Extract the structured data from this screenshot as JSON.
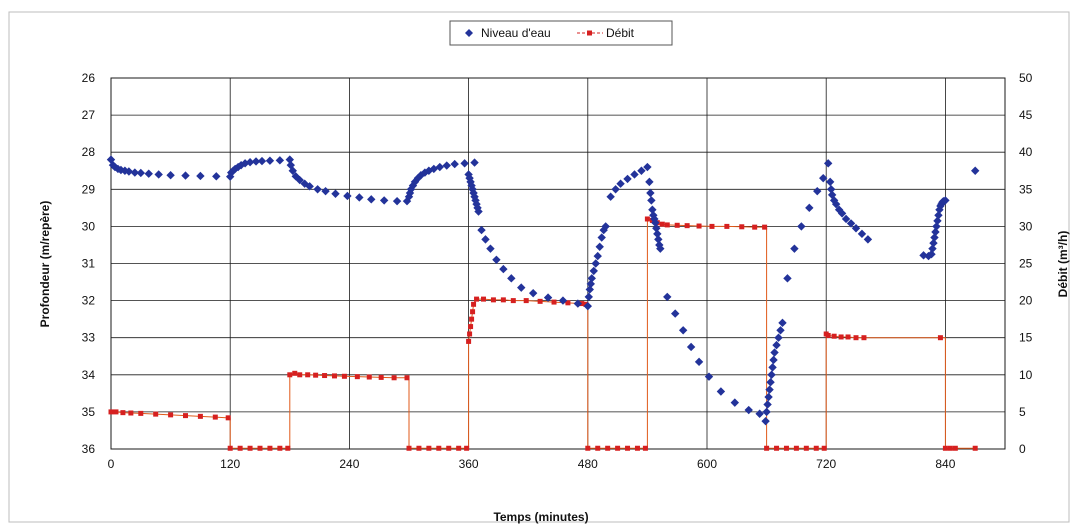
{
  "chart_data": {
    "type": "scatter",
    "title": "",
    "xlabel": "Temps (minutes)",
    "ylabel": "Profondeur (m/repère)",
    "y2label": "Débit (m³/h)",
    "xlim": [
      0,
      900
    ],
    "ylim": [
      36,
      26
    ],
    "y2lim": [
      0,
      50
    ],
    "x_ticks": [
      0,
      120,
      240,
      360,
      480,
      600,
      720,
      840
    ],
    "x_tick_labels": [
      "0",
      "120",
      "240",
      "360",
      "480",
      "600",
      "720",
      "840"
    ],
    "y_ticks": [
      26,
      27,
      28,
      29,
      30,
      31,
      32,
      33,
      34,
      35,
      36
    ],
    "y_tick_labels": [
      "26",
      "27",
      "28",
      "29",
      "30",
      "31",
      "32",
      "33",
      "34",
      "35",
      "36"
    ],
    "y2_ticks": [
      0,
      5,
      10,
      15,
      20,
      25,
      30,
      35,
      40,
      45,
      50
    ],
    "y2_tick_labels": [
      "0",
      "5",
      "10",
      "15",
      "20",
      "25",
      "30",
      "35",
      "40",
      "45",
      "50"
    ],
    "grid": true,
    "legend_position": "top-center",
    "colors": {
      "niveau": "#23339a",
      "debit": "#d62020",
      "flow_line": "#e05a1a",
      "grid": "#1a1a1a",
      "background": "#ffffff"
    },
    "series": [
      {
        "name": "Niveau d'eau",
        "axis": "left",
        "marker": "diamond",
        "points": [
          [
            0,
            28.2
          ],
          [
            2,
            28.35
          ],
          [
            4,
            28.4
          ],
          [
            7,
            28.45
          ],
          [
            10,
            28.48
          ],
          [
            14,
            28.5
          ],
          [
            18,
            28.52
          ],
          [
            24,
            28.55
          ],
          [
            30,
            28.56
          ],
          [
            38,
            28.58
          ],
          [
            48,
            28.6
          ],
          [
            60,
            28.62
          ],
          [
            75,
            28.63
          ],
          [
            90,
            28.64
          ],
          [
            106,
            28.65
          ],
          [
            120,
            28.66
          ],
          [
            121,
            28.55
          ],
          [
            123,
            28.5
          ],
          [
            125,
            28.45
          ],
          [
            128,
            28.4
          ],
          [
            131,
            28.35
          ],
          [
            135,
            28.3
          ],
          [
            140,
            28.27
          ],
          [
            146,
            28.25
          ],
          [
            152,
            28.24
          ],
          [
            160,
            28.23
          ],
          [
            170,
            28.22
          ],
          [
            180,
            28.2
          ],
          [
            181,
            28.35
          ],
          [
            183,
            28.5
          ],
          [
            186,
            28.65
          ],
          [
            190,
            28.75
          ],
          [
            195,
            28.85
          ],
          [
            200,
            28.92
          ],
          [
            208,
            29.0
          ],
          [
            216,
            29.05
          ],
          [
            226,
            29.12
          ],
          [
            238,
            29.18
          ],
          [
            250,
            29.22
          ],
          [
            262,
            29.27
          ],
          [
            275,
            29.3
          ],
          [
            288,
            29.32
          ],
          [
            298,
            29.32
          ],
          [
            300,
            29.2
          ],
          [
            301,
            29.1
          ],
          [
            302,
            29.0
          ],
          [
            304,
            28.9
          ],
          [
            306,
            28.8
          ],
          [
            309,
            28.7
          ],
          [
            312,
            28.62
          ],
          [
            316,
            28.55
          ],
          [
            320,
            28.5
          ],
          [
            325,
            28.45
          ],
          [
            331,
            28.4
          ],
          [
            338,
            28.36
          ],
          [
            346,
            28.32
          ],
          [
            356,
            28.3
          ],
          [
            366,
            28.28
          ],
          [
            360,
            28.6
          ],
          [
            361,
            28.7
          ],
          [
            362,
            28.8
          ],
          [
            363,
            28.9
          ],
          [
            364,
            29.0
          ],
          [
            365,
            29.1
          ],
          [
            366,
            29.2
          ],
          [
            367,
            29.3
          ],
          [
            368,
            29.4
          ],
          [
            369,
            29.5
          ],
          [
            370,
            29.6
          ],
          [
            373,
            30.1
          ],
          [
            377,
            30.35
          ],
          [
            382,
            30.6
          ],
          [
            388,
            30.9
          ],
          [
            395,
            31.15
          ],
          [
            403,
            31.4
          ],
          [
            413,
            31.65
          ],
          [
            425,
            31.8
          ],
          [
            440,
            31.92
          ],
          [
            455,
            32.0
          ],
          [
            470,
            32.08
          ],
          [
            480,
            32.15
          ],
          [
            481,
            31.9
          ],
          [
            482,
            31.7
          ],
          [
            483,
            31.55
          ],
          [
            484,
            31.4
          ],
          [
            486,
            31.2
          ],
          [
            488,
            31.0
          ],
          [
            490,
            30.8
          ],
          [
            492,
            30.55
          ],
          [
            494,
            30.3
          ],
          [
            496,
            30.1
          ],
          [
            498,
            30.0
          ],
          [
            503,
            29.2
          ],
          [
            508,
            29.0
          ],
          [
            513,
            28.85
          ],
          [
            520,
            28.72
          ],
          [
            527,
            28.6
          ],
          [
            534,
            28.5
          ],
          [
            540,
            28.4
          ],
          [
            542,
            28.8
          ],
          [
            543,
            29.1
          ],
          [
            544,
            29.3
          ],
          [
            545,
            29.55
          ],
          [
            546,
            29.7
          ],
          [
            547,
            29.8
          ],
          [
            548,
            29.9
          ],
          [
            549,
            30.05
          ],
          [
            550,
            30.2
          ],
          [
            551,
            30.35
          ],
          [
            552,
            30.5
          ],
          [
            553,
            30.6
          ],
          [
            560,
            31.9
          ],
          [
            568,
            32.35
          ],
          [
            576,
            32.8
          ],
          [
            584,
            33.25
          ],
          [
            592,
            33.65
          ],
          [
            602,
            34.05
          ],
          [
            614,
            34.45
          ],
          [
            628,
            34.75
          ],
          [
            642,
            34.95
          ],
          [
            653,
            35.05
          ],
          [
            659,
            35.25
          ],
          [
            660,
            35.0
          ],
          [
            661,
            34.8
          ],
          [
            662,
            34.6
          ],
          [
            663,
            34.4
          ],
          [
            664,
            34.2
          ],
          [
            665,
            34.0
          ],
          [
            666,
            33.8
          ],
          [
            667,
            33.6
          ],
          [
            668,
            33.4
          ],
          [
            670,
            33.2
          ],
          [
            672,
            33.0
          ],
          [
            674,
            32.8
          ],
          [
            676,
            32.6
          ],
          [
            681,
            31.4
          ],
          [
            688,
            30.6
          ],
          [
            695,
            30.0
          ],
          [
            703,
            29.5
          ],
          [
            711,
            29.05
          ],
          [
            717,
            28.7
          ],
          [
            722,
            28.3
          ],
          [
            724,
            28.8
          ],
          [
            725,
            29.0
          ],
          [
            726,
            29.15
          ],
          [
            728,
            29.3
          ],
          [
            730,
            29.4
          ],
          [
            733,
            29.55
          ],
          [
            736,
            29.65
          ],
          [
            740,
            29.8
          ],
          [
            745,
            29.92
          ],
          [
            750,
            30.05
          ],
          [
            756,
            30.2
          ],
          [
            762,
            30.35
          ],
          [
            818,
            30.78
          ],
          [
            823,
            30.8
          ],
          [
            826,
            30.75
          ],
          [
            827,
            30.6
          ],
          [
            828,
            30.45
          ],
          [
            829,
            30.3
          ],
          [
            830,
            30.15
          ],
          [
            831,
            30.0
          ],
          [
            832,
            29.85
          ],
          [
            833,
            29.7
          ],
          [
            834,
            29.55
          ],
          [
            835,
            29.45
          ],
          [
            836,
            29.4
          ],
          [
            837,
            29.35
          ],
          [
            838,
            29.32
          ],
          [
            840,
            29.3
          ],
          [
            870,
            28.5
          ]
        ]
      },
      {
        "name": "Débit",
        "axis": "right",
        "marker": "square",
        "segments": [
          [
            [
              0,
              5.0
            ],
            [
              5,
              5.0
            ],
            [
              12,
              4.9
            ],
            [
              20,
              4.85
            ],
            [
              30,
              4.8
            ],
            [
              45,
              4.7
            ],
            [
              60,
              4.6
            ],
            [
              75,
              4.5
            ],
            [
              90,
              4.4
            ],
            [
              105,
              4.3
            ],
            [
              118,
              4.2
            ]
          ],
          [
            [
              120,
              0.1
            ],
            [
              130,
              0.1
            ],
            [
              140,
              0.1
            ],
            [
              150,
              0.1
            ],
            [
              160,
              0.1
            ],
            [
              170,
              0.1
            ],
            [
              178,
              0.1
            ]
          ],
          [
            [
              180,
              10.0
            ],
            [
              185,
              10.2
            ],
            [
              190,
              10.0
            ],
            [
              198,
              10.0
            ],
            [
              206,
              9.95
            ],
            [
              215,
              9.9
            ],
            [
              225,
              9.85
            ],
            [
              235,
              9.8
            ],
            [
              248,
              9.75
            ],
            [
              260,
              9.7
            ],
            [
              272,
              9.65
            ],
            [
              285,
              9.6
            ],
            [
              298,
              9.6
            ]
          ],
          [
            [
              300,
              0.1
            ],
            [
              310,
              0.1
            ],
            [
              320,
              0.1
            ],
            [
              330,
              0.1
            ],
            [
              340,
              0.1
            ],
            [
              350,
              0.1
            ],
            [
              358,
              0.1
            ]
          ],
          [
            [
              360,
              14.5
            ],
            [
              361,
              15.5
            ],
            [
              362,
              16.5
            ],
            [
              363,
              17.5
            ],
            [
              364,
              18.5
            ],
            [
              365,
              19.5
            ],
            [
              368,
              20.2
            ],
            [
              375,
              20.2
            ],
            [
              385,
              20.1
            ],
            [
              395,
              20.1
            ],
            [
              405,
              20.0
            ],
            [
              418,
              20.0
            ],
            [
              432,
              19.9
            ],
            [
              446,
              19.8
            ],
            [
              460,
              19.7
            ],
            [
              474,
              19.6
            ],
            [
              478,
              19.5
            ]
          ],
          [
            [
              480,
              0.1
            ],
            [
              490,
              0.1
            ],
            [
              500,
              0.1
            ],
            [
              510,
              0.1
            ],
            [
              520,
              0.1
            ],
            [
              530,
              0.1
            ],
            [
              538,
              0.1
            ]
          ],
          [
            [
              540,
              31.0
            ],
            [
              545,
              30.8
            ],
            [
              550,
              30.5
            ],
            [
              555,
              30.3
            ],
            [
              560,
              30.2
            ],
            [
              570,
              30.15
            ],
            [
              580,
              30.1
            ],
            [
              592,
              30.05
            ],
            [
              605,
              30.0
            ],
            [
              620,
              30.0
            ],
            [
              635,
              29.95
            ],
            [
              648,
              29.9
            ],
            [
              658,
              29.9
            ]
          ],
          [
            [
              660,
              0.1
            ],
            [
              670,
              0.1
            ],
            [
              680,
              0.1
            ],
            [
              690,
              0.1
            ],
            [
              700,
              0.1
            ],
            [
              710,
              0.1
            ],
            [
              718,
              0.1
            ]
          ],
          [
            [
              720,
              15.5
            ],
            [
              722,
              15.3
            ],
            [
              728,
              15.2
            ],
            [
              735,
              15.1
            ],
            [
              742,
              15.1
            ],
            [
              750,
              15.0
            ],
            [
              758,
              15.0
            ]
          ],
          [
            [
              835,
              15.0
            ]
          ],
          [
            [
              840,
              0.1
            ],
            [
              845,
              0.1
            ],
            [
              850,
              0.1
            ],
            [
              870,
              0.1
            ]
          ]
        ]
      }
    ]
  }
}
